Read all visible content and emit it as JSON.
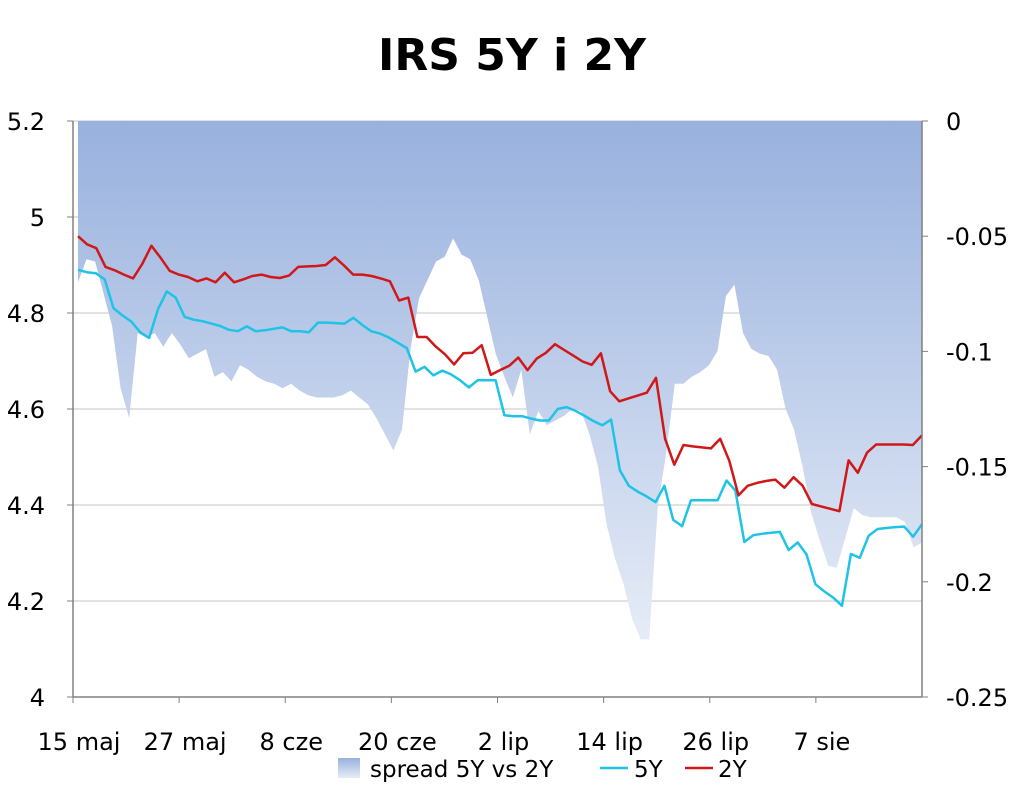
{
  "chart_data": {
    "type": "line",
    "title": "IRS 5Y i 2Y",
    "x_tick_labels": [
      "15 maj",
      "27 maj",
      "8 cze",
      "20 cze",
      "2 lip",
      "14 lip",
      "26 lip",
      "7 sie"
    ],
    "y_left": {
      "min": 4,
      "max": 5.2,
      "ticks": [
        "5.2",
        "5",
        "4.8",
        "4.6",
        "4.4",
        "4.2",
        "4"
      ]
    },
    "y_right": {
      "min": -0.25,
      "max": 0,
      "ticks": [
        "0",
        "-0.05",
        "-0.1",
        "-0.15",
        "-0.2",
        "-0.25"
      ]
    },
    "grid": "horizontal",
    "legend_position": "bottom",
    "colors": {
      "spread_top": "#98b1de",
      "spread_bottom": "#e6ecf7",
      "five_y": "#1fc3e6",
      "two_y": "#d01818",
      "grid": "#c4c4c4"
    },
    "series": [
      {
        "name": "spread 5Y vs 2Y",
        "type": "area",
        "axis": "right",
        "values": [
          -0.07,
          -0.06,
          -0.061,
          -0.075,
          -0.089,
          -0.116,
          -0.129,
          -0.092,
          -0.094,
          -0.092,
          -0.098,
          -0.092,
          -0.097,
          -0.103,
          -0.101,
          -0.099,
          -0.111,
          -0.109,
          -0.113,
          -0.106,
          -0.108,
          -0.111,
          -0.113,
          -0.114,
          -0.116,
          -0.114,
          -0.117,
          -0.119,
          -0.12,
          -0.12,
          -0.12,
          -0.119,
          -0.117,
          -0.12,
          -0.123,
          -0.129,
          -0.136,
          -0.143,
          -0.134,
          -0.099,
          -0.077,
          -0.069,
          -0.061,
          -0.059,
          -0.051,
          -0.058,
          -0.06,
          -0.069,
          -0.085,
          -0.101,
          -0.111,
          -0.12,
          -0.108,
          -0.136,
          -0.126,
          -0.132,
          -0.13,
          -0.128,
          -0.125,
          -0.126,
          -0.136,
          -0.15,
          -0.175,
          -0.19,
          -0.201,
          -0.216,
          -0.225,
          -0.225,
          -0.168,
          -0.144,
          -0.114,
          -0.114,
          -0.111,
          -0.109,
          -0.106,
          -0.1,
          -0.076,
          -0.071,
          -0.092,
          -0.099,
          -0.101,
          -0.102,
          -0.108,
          -0.125,
          -0.134,
          -0.15,
          -0.17,
          -0.182,
          -0.193,
          -0.194,
          -0.181,
          -0.168,
          -0.171,
          -0.172,
          -0.172,
          -0.172,
          -0.172,
          -0.174,
          -0.185,
          -0.183
        ]
      },
      {
        "name": "5Y",
        "axis": "left",
        "values": [
          4.89,
          4.885,
          4.883,
          4.87,
          4.81,
          4.795,
          4.782,
          4.76,
          4.748,
          4.808,
          4.845,
          4.832,
          4.792,
          4.786,
          4.783,
          4.778,
          4.773,
          4.765,
          4.762,
          4.772,
          4.762,
          4.764,
          4.767,
          4.77,
          4.762,
          4.762,
          4.76,
          4.78,
          4.78,
          4.779,
          4.778,
          4.79,
          4.775,
          4.762,
          4.757,
          4.749,
          4.738,
          4.727,
          4.678,
          4.688,
          4.67,
          4.68,
          4.672,
          4.66,
          4.645,
          4.66,
          4.66,
          4.66,
          4.587,
          4.585,
          4.585,
          4.58,
          4.576,
          4.576,
          4.6,
          4.604,
          4.596,
          4.586,
          4.575,
          4.566,
          4.578,
          4.472,
          4.44,
          4.428,
          4.418,
          4.406,
          4.44,
          4.369,
          4.356,
          4.41,
          4.41,
          4.41,
          4.41,
          4.451,
          4.43,
          4.323,
          4.337,
          4.34,
          4.342,
          4.344,
          4.306,
          4.322,
          4.297,
          4.235,
          4.22,
          4.207,
          4.19,
          4.298,
          4.29,
          4.336,
          4.35,
          4.352,
          4.354,
          4.355,
          4.334,
          4.36
        ]
      },
      {
        "name": "2Y",
        "axis": "left",
        "values": [
          4.96,
          4.943,
          4.935,
          4.896,
          4.889,
          4.88,
          4.872,
          4.902,
          4.94,
          4.915,
          4.888,
          4.88,
          4.875,
          4.866,
          4.872,
          4.864,
          4.884,
          4.864,
          4.87,
          4.877,
          4.88,
          4.875,
          4.873,
          4.878,
          4.896,
          4.897,
          4.898,
          4.9,
          4.916,
          4.899,
          4.88,
          4.88,
          4.877,
          4.872,
          4.866,
          4.826,
          4.832,
          4.75,
          4.75,
          4.73,
          4.714,
          4.693,
          4.716,
          4.717,
          4.733,
          4.671,
          4.681,
          4.69,
          4.707,
          4.681,
          4.705,
          4.717,
          4.735,
          4.723,
          4.711,
          4.699,
          4.692,
          4.716,
          4.637,
          4.616,
          4.622,
          4.628,
          4.634,
          4.665,
          4.538,
          4.484,
          4.525,
          4.522,
          4.52,
          4.518,
          4.538,
          4.492,
          4.42,
          4.44,
          4.446,
          4.45,
          4.453,
          4.436,
          4.458,
          4.44,
          4.402,
          4.397,
          4.392,
          4.387,
          4.493,
          4.467,
          4.509,
          4.526,
          4.526,
          4.526,
          4.526,
          4.525,
          4.545
        ]
      }
    ]
  }
}
